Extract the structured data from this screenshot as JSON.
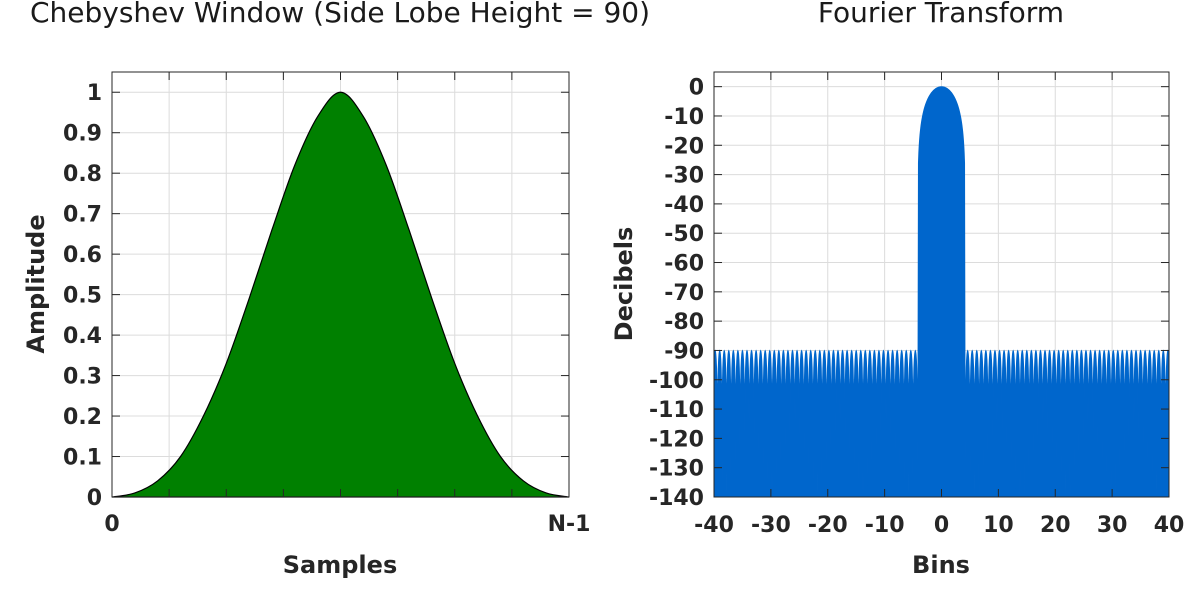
{
  "chart_data": [
    {
      "type": "area",
      "title": "Chebyshev Window (Side Lobe Height = 90)",
      "xlabel": "Samples",
      "ylabel": "Amplitude",
      "x_tick_labels": [
        "0",
        "N-1"
      ],
      "xlim": [
        0,
        1
      ],
      "ylim": [
        0,
        1.05
      ],
      "y_ticks": [
        0,
        0.1,
        0.2,
        0.3,
        0.4,
        0.5,
        0.6,
        0.7,
        0.8,
        0.9,
        1
      ],
      "y_tick_labels": [
        "0",
        "0.1",
        "0.2",
        "0.3",
        "0.4",
        "0.5",
        "0.6",
        "0.7",
        "0.8",
        "0.9",
        "1"
      ],
      "grid": true,
      "fill_color": "#008000",
      "line_color": "#000000",
      "x": [
        0,
        0.05,
        0.1,
        0.15,
        0.2,
        0.25,
        0.3,
        0.35,
        0.4,
        0.45,
        0.5,
        0.55,
        0.6,
        0.65,
        0.7,
        0.75,
        0.8,
        0.85,
        0.9,
        0.95,
        1
      ],
      "values": [
        0.0,
        0.01,
        0.04,
        0.1,
        0.2,
        0.33,
        0.49,
        0.66,
        0.82,
        0.94,
        1.0,
        0.94,
        0.82,
        0.66,
        0.49,
        0.33,
        0.2,
        0.1,
        0.04,
        0.01,
        0.0
      ]
    },
    {
      "type": "area",
      "title": "Fourier Transform",
      "xlabel": "Bins",
      "ylabel": "Decibels",
      "xlim": [
        -40,
        40
      ],
      "ylim": [
        -140,
        5
      ],
      "x_ticks": [
        -40,
        -30,
        -20,
        -10,
        0,
        10,
        20,
        30,
        40
      ],
      "x_tick_labels": [
        "-40",
        "-30",
        "-20",
        "-10",
        "0",
        "10",
        "20",
        "30",
        "40"
      ],
      "y_ticks": [
        0,
        -10,
        -20,
        -30,
        -40,
        -50,
        -60,
        -70,
        -80,
        -90,
        -100,
        -110,
        -120,
        -130,
        -140
      ],
      "y_tick_labels": [
        "0",
        "-10",
        "-20",
        "-30",
        "-40",
        "-50",
        "-60",
        "-70",
        "-80",
        "-90",
        "-100",
        "-110",
        "-120",
        "-130",
        "-140"
      ],
      "grid": true,
      "fill_color": "#0066cc",
      "side_lobe_level": -90,
      "main_lobe_halfwidth": 4.2,
      "main_lobe_peak": 0
    }
  ]
}
